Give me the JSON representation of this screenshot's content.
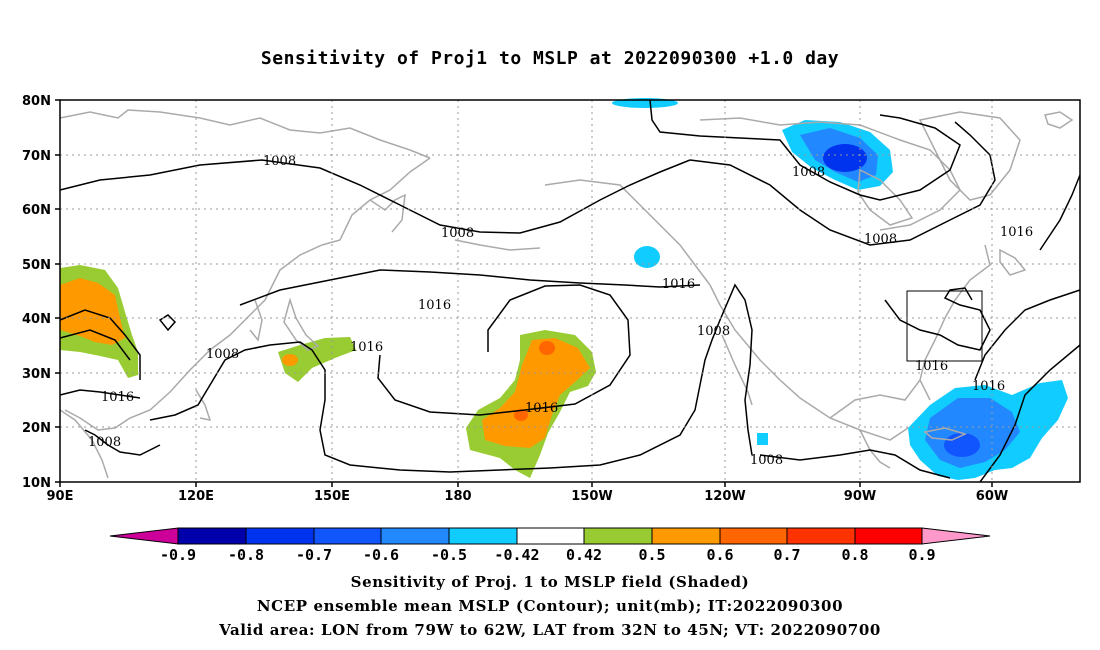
{
  "title": "Sensitivity of Proj1 to MSLP at 2022090300 +1.0 day",
  "lat_labels": [
    "80N",
    "70N",
    "60N",
    "50N",
    "40N",
    "30N",
    "20N",
    "10N"
  ],
  "lon_labels": [
    "90E",
    "120E",
    "150E",
    "180",
    "150W",
    "120W",
    "90W",
    "60W"
  ],
  "contour_labels": [
    "1008",
    "1008",
    "1016",
    "1008",
    "1008",
    "1016",
    "1016",
    "1016",
    "1008",
    "1016",
    "1008",
    "1008",
    "1016",
    "1016"
  ],
  "colorbar": {
    "labels": [
      "-0.9",
      "-0.8",
      "-0.7",
      "-0.6",
      "-0.5",
      "-0.42",
      "0.42",
      "0.5",
      "0.6",
      "0.7",
      "0.8",
      "0.9"
    ],
    "colors": [
      "#cc0099",
      "#0000aa",
      "#0033ee",
      "#1155ff",
      "#2288ff",
      "#11ccff",
      "#ffffff",
      "#99cc33",
      "#ff9900",
      "#ff6600",
      "#ff3300",
      "#ff0000",
      "#ff99cc"
    ]
  },
  "captions": [
    "Sensitivity of Proj. 1 to MSLP field (Shaded)",
    "NCEP ensemble mean MSLP (Contour); unit(mb); IT:2022090300",
    "Valid area: LON from 79W to 62W, LAT from 32N to 45N; VT: 2022090700"
  ]
}
